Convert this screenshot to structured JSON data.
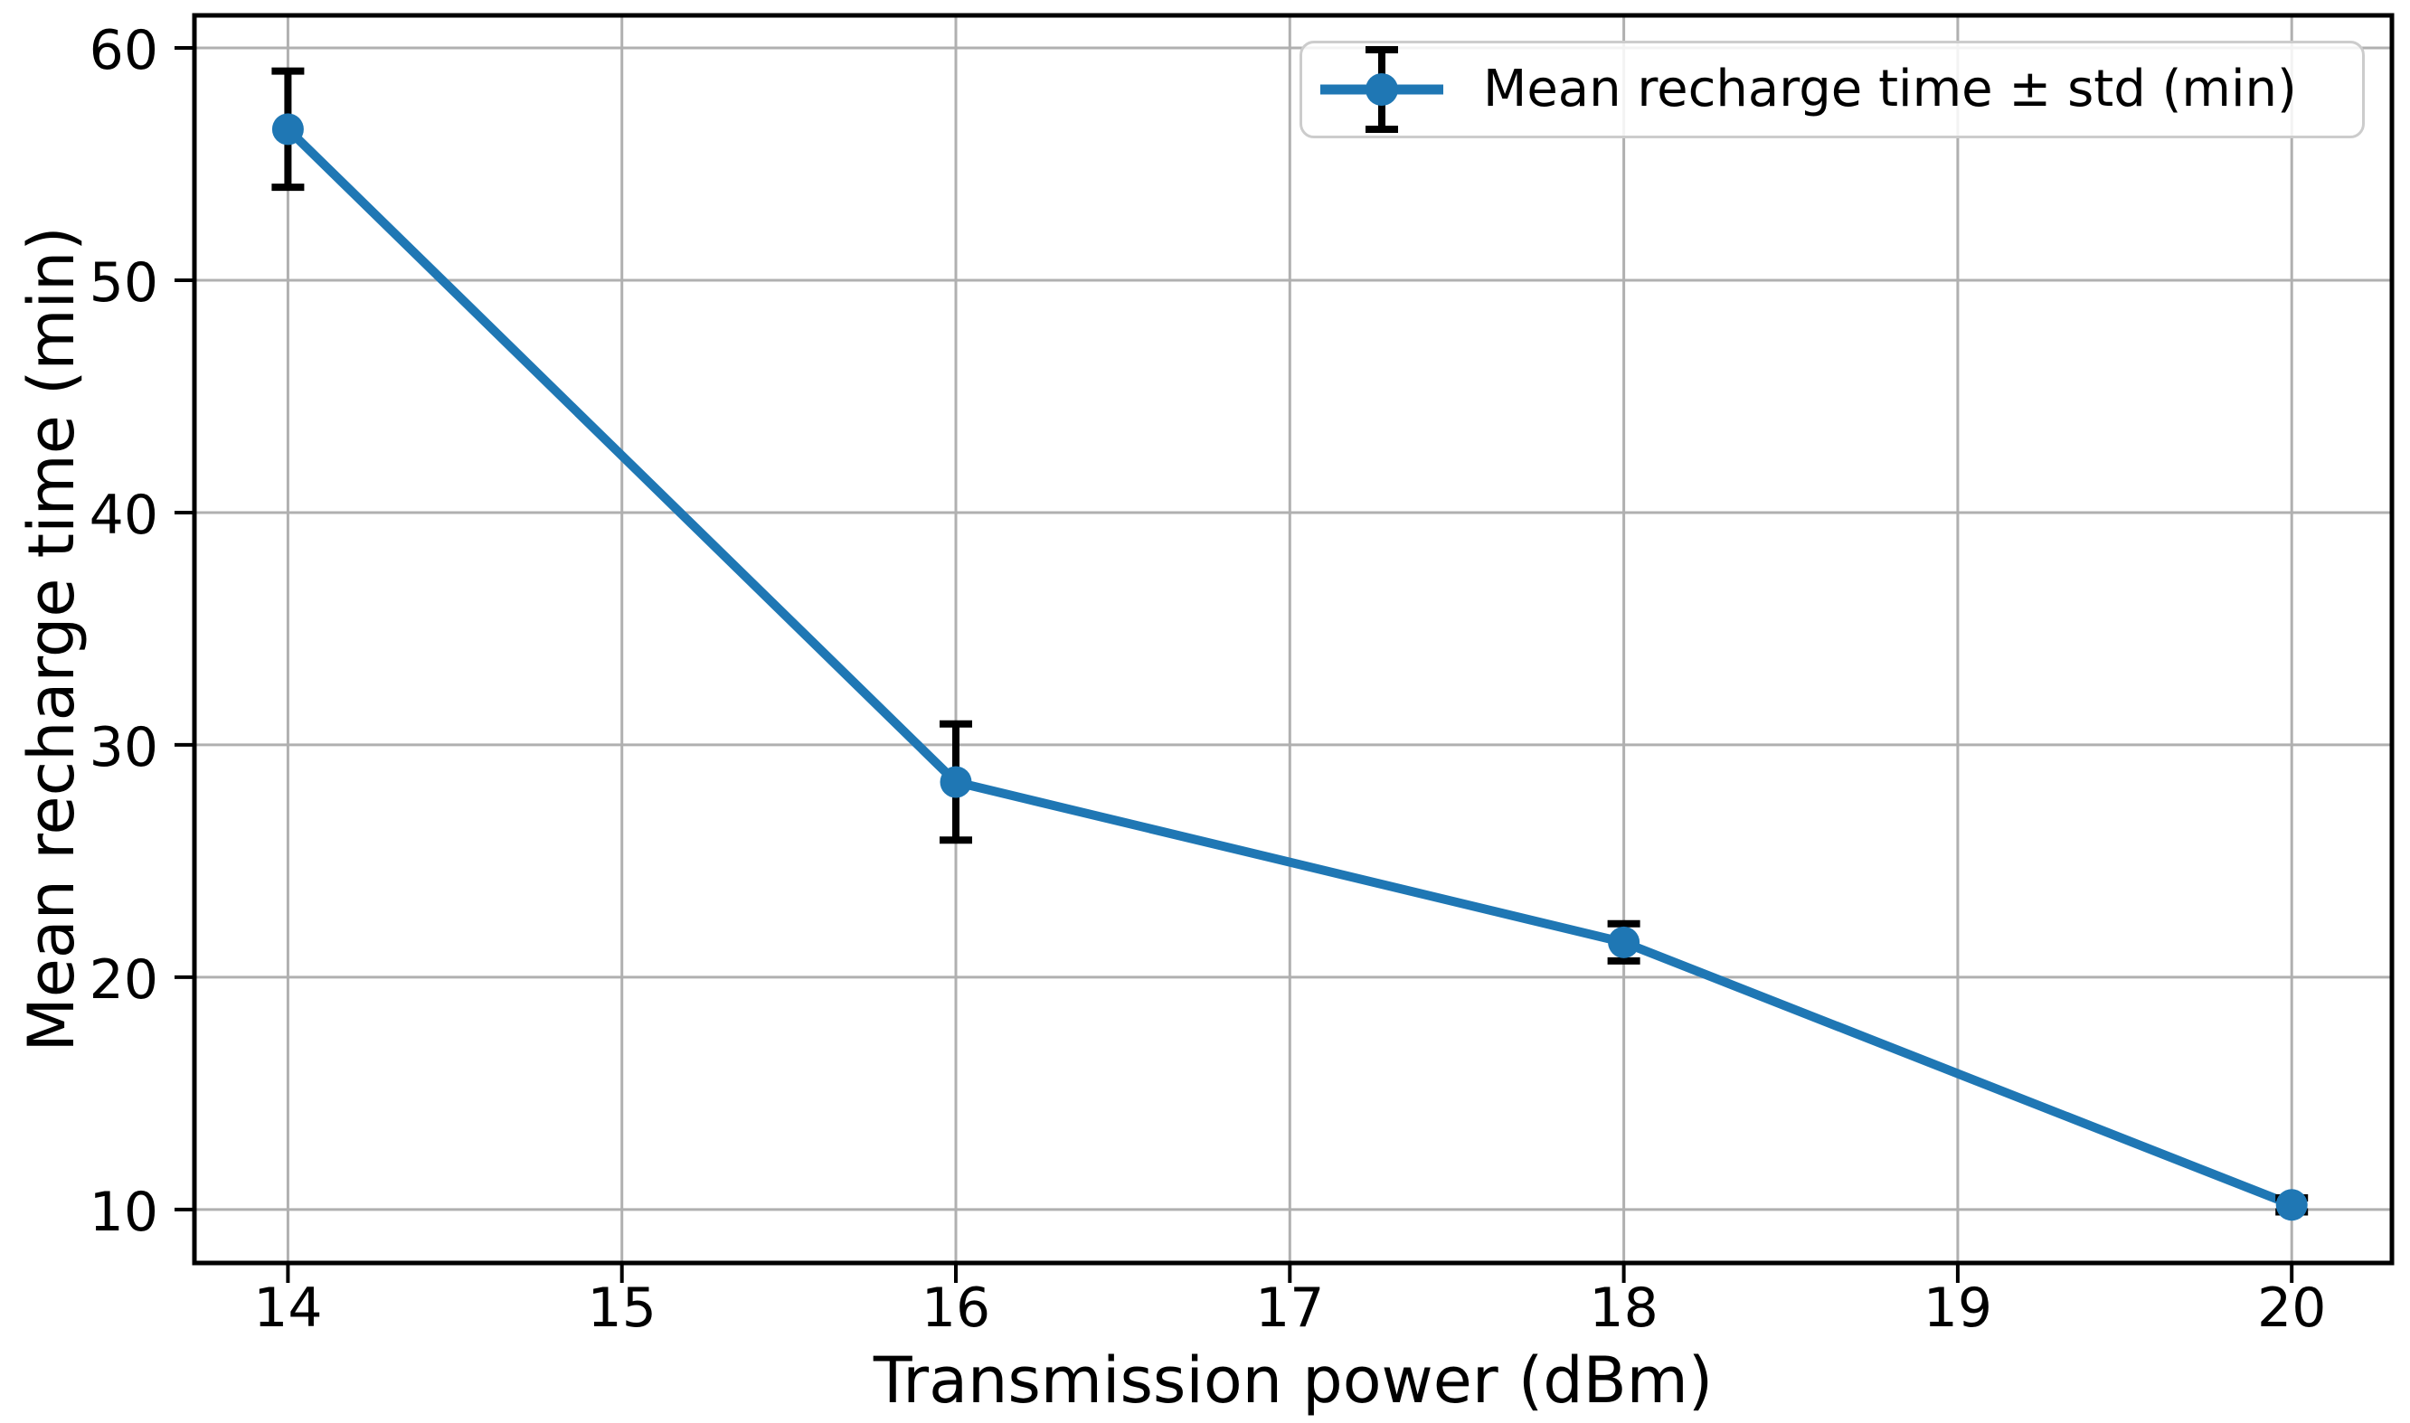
{
  "chart_data": {
    "type": "line",
    "title": "",
    "xlabel": "Transmission power (dBm)",
    "ylabel": "Mean recharge time (min)",
    "legend": {
      "label": "Mean recharge time ± std (min)",
      "position": "upper right"
    },
    "x": [
      14,
      16,
      18,
      20
    ],
    "series": [
      {
        "name": "Mean recharge time ± std (min)",
        "mean": [
          56.5,
          28.4,
          21.5,
          10.2
        ],
        "std": [
          2.5,
          2.5,
          0.8,
          0.3
        ],
        "color": "#1f77b4",
        "marker": "circle",
        "errorbar_color": "#000000"
      }
    ],
    "xticks": [
      "14",
      "15",
      "16",
      "17",
      "18",
      "19",
      "20"
    ],
    "xtick_values": [
      14,
      15,
      16,
      17,
      18,
      19,
      20
    ],
    "yticks": [
      "10",
      "20",
      "30",
      "40",
      "50",
      "60"
    ],
    "ytick_values": [
      10,
      20,
      30,
      40,
      50,
      60
    ],
    "xlim": [
      13.72,
      20.3
    ],
    "ylim": [
      7.7,
      61.4
    ],
    "grid": true,
    "grid_color": "#b0b0b0",
    "spine_color": "#000000",
    "background": "#ffffff"
  }
}
